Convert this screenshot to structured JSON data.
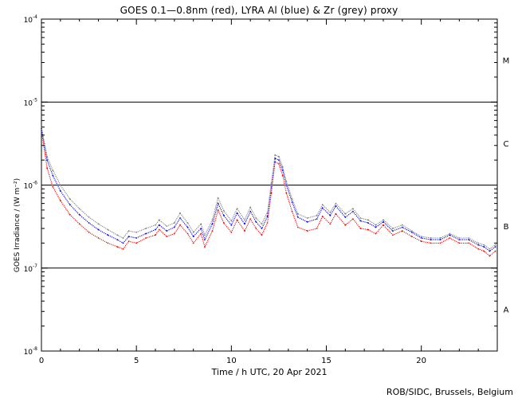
{
  "chart_data": {
    "type": "line",
    "title": "GOES 0.1—0.8nm (red), LYRA Al (blue) & Zr (grey) proxy",
    "xlabel": "Time / h UTC, 20 Apr 2021",
    "ylabel": "GOES Irradiance / (W m⁻²)",
    "credit": "ROB/SIDC, Brussels, Belgium",
    "scale": "log",
    "xlim": [
      0,
      24
    ],
    "ylim": [
      1e-08,
      0.0001
    ],
    "x_ticks": [
      0,
      5,
      10,
      15,
      20
    ],
    "x_tick_labels": [
      "0",
      "5",
      "10",
      "15",
      "20"
    ],
    "y_ticks": [
      {
        "base": "10",
        "exp": "-8",
        "value": 1e-08
      },
      {
        "base": "10",
        "exp": "-7",
        "value": 1e-07
      },
      {
        "base": "10",
        "exp": "-6",
        "value": 1e-06
      },
      {
        "base": "10",
        "exp": "-5",
        "value": 1e-05
      },
      {
        "base": "10",
        "exp": "-4",
        "value": 0.0001
      }
    ],
    "flare_class_lines": [
      1e-07,
      1e-06,
      1e-05
    ],
    "flare_classes": [
      {
        "label": "A",
        "value": 3.2e-08
      },
      {
        "label": "B",
        "value": 3.2e-07
      },
      {
        "label": "C",
        "value": 3.2e-06
      },
      {
        "label": "M",
        "value": 3.2e-05
      }
    ],
    "series": [
      {
        "name": "GOES 0.1—0.8nm",
        "color": "#ff0000",
        "x": [
          0.0,
          0.3,
          0.6,
          1.0,
          1.5,
          2.0,
          2.5,
          3.0,
          3.5,
          4.0,
          4.3,
          4.6,
          5.0,
          5.5,
          6.0,
          6.2,
          6.6,
          7.0,
          7.3,
          7.7,
          8.0,
          8.4,
          8.6,
          9.0,
          9.3,
          9.6,
          10.0,
          10.3,
          10.7,
          11.0,
          11.3,
          11.6,
          11.9,
          12.1,
          12.3,
          12.5,
          12.7,
          12.9,
          13.2,
          13.5,
          14.0,
          14.5,
          14.8,
          15.2,
          15.5,
          16.0,
          16.4,
          16.8,
          17.2,
          17.6,
          18.0,
          18.5,
          19.0,
          19.5,
          20.0,
          20.5,
          21.0,
          21.5,
          22.0,
          22.5,
          23.0,
          23.3,
          23.6,
          23.9
        ],
        "values": [
          4.5e-06,
          1.6e-06,
          9.5e-07,
          6.5e-07,
          4.4e-07,
          3.4e-07,
          2.7e-07,
          2.3e-07,
          2e-07,
          1.8e-07,
          1.7e-07,
          2.1e-07,
          2e-07,
          2.3e-07,
          2.5e-07,
          2.9e-07,
          2.4e-07,
          2.6e-07,
          3.3e-07,
          2.6e-07,
          2e-07,
          2.6e-07,
          1.8e-07,
          2.8e-07,
          5e-07,
          3.5e-07,
          2.7e-07,
          3.8e-07,
          2.8e-07,
          3.9e-07,
          3e-07,
          2.5e-07,
          3.5e-07,
          8e-07,
          1.9e-06,
          1.8e-06,
          1.3e-06,
          8e-07,
          4.8e-07,
          3.1e-07,
          2.8e-07,
          3e-07,
          4.2e-07,
          3.4e-07,
          4.5e-07,
          3.3e-07,
          3.9e-07,
          3e-07,
          2.9e-07,
          2.6e-07,
          3.3e-07,
          2.5e-07,
          2.8e-07,
          2.4e-07,
          2.1e-07,
          2e-07,
          2e-07,
          2.3e-07,
          2e-07,
          2e-07,
          1.7e-07,
          1.6e-07,
          1.4e-07,
          1.6e-07
        ]
      },
      {
        "name": "LYRA Al",
        "color": "#0000ff",
        "x": [
          0.0,
          0.3,
          0.6,
          1.0,
          1.5,
          2.0,
          2.5,
          3.0,
          3.5,
          4.0,
          4.3,
          4.6,
          5.0,
          5.5,
          6.0,
          6.2,
          6.6,
          7.0,
          7.3,
          7.7,
          8.0,
          8.4,
          8.6,
          9.0,
          9.3,
          9.6,
          10.0,
          10.3,
          10.7,
          11.0,
          11.3,
          11.6,
          11.9,
          12.1,
          12.3,
          12.5,
          12.7,
          12.9,
          13.2,
          13.5,
          14.0,
          14.5,
          14.8,
          15.2,
          15.5,
          16.0,
          16.4,
          16.8,
          17.2,
          17.6,
          18.0,
          18.5,
          19.0,
          19.5,
          20.0,
          20.5,
          21.0,
          21.5,
          22.0,
          22.5,
          23.0,
          23.3,
          23.6,
          23.9
        ],
        "values": [
          4.8e-06,
          2e-06,
          1.3e-06,
          8.5e-07,
          5.8e-07,
          4.4e-07,
          3.5e-07,
          2.9e-07,
          2.5e-07,
          2.2e-07,
          2e-07,
          2.4e-07,
          2.3e-07,
          2.6e-07,
          2.9e-07,
          3.3e-07,
          2.8e-07,
          3.1e-07,
          4e-07,
          3.1e-07,
          2.4e-07,
          3e-07,
          2.2e-07,
          3.4e-07,
          6e-07,
          4.3e-07,
          3.3e-07,
          4.6e-07,
          3.4e-07,
          4.8e-07,
          3.6e-07,
          3e-07,
          4.2e-07,
          9.5e-07,
          2.1e-06,
          2e-06,
          1.5e-06,
          1e-06,
          6.2e-07,
          4.1e-07,
          3.6e-07,
          3.9e-07,
          5.3e-07,
          4.3e-07,
          5.6e-07,
          4.1e-07,
          4.8e-07,
          3.7e-07,
          3.5e-07,
          3.1e-07,
          3.6e-07,
          2.8e-07,
          3.1e-07,
          2.7e-07,
          2.3e-07,
          2.2e-07,
          2.2e-07,
          2.5e-07,
          2.2e-07,
          2.2e-07,
          1.9e-07,
          1.8e-07,
          1.6e-07,
          1.8e-07
        ]
      },
      {
        "name": "LYRA Zr",
        "color": "#808080",
        "x": [
          0.0,
          0.3,
          0.6,
          1.0,
          1.5,
          2.0,
          2.5,
          3.0,
          3.5,
          4.0,
          4.3,
          4.6,
          5.0,
          5.5,
          6.0,
          6.2,
          6.6,
          7.0,
          7.3,
          7.7,
          8.0,
          8.4,
          8.6,
          9.0,
          9.3,
          9.6,
          10.0,
          10.3,
          10.7,
          11.0,
          11.3,
          11.6,
          11.9,
          12.1,
          12.3,
          12.5,
          12.7,
          12.9,
          13.2,
          13.5,
          14.0,
          14.5,
          14.8,
          15.2,
          15.5,
          16.0,
          16.4,
          16.8,
          17.2,
          17.6,
          18.0,
          18.5,
          19.0,
          19.5,
          20.0,
          20.5,
          21.0,
          21.5,
          22.0,
          22.5,
          23.0,
          23.3,
          23.6,
          23.9
        ],
        "values": [
          5e-06,
          2.2e-06,
          1.5e-06,
          1e-06,
          6.8e-07,
          5.2e-07,
          4.1e-07,
          3.4e-07,
          2.9e-07,
          2.5e-07,
          2.3e-07,
          2.8e-07,
          2.7e-07,
          3e-07,
          3.3e-07,
          3.8e-07,
          3.2e-07,
          3.5e-07,
          4.6e-07,
          3.5e-07,
          2.7e-07,
          3.4e-07,
          2.5e-07,
          3.8e-07,
          7e-07,
          4.9e-07,
          3.7e-07,
          5.2e-07,
          3.8e-07,
          5.4e-07,
          4e-07,
          3.4e-07,
          4.7e-07,
          1.05e-06,
          2.3e-06,
          2.2e-06,
          1.65e-06,
          1.1e-06,
          6.8e-07,
          4.5e-07,
          4e-07,
          4.3e-07,
          5.8e-07,
          4.7e-07,
          6e-07,
          4.5e-07,
          5.2e-07,
          4e-07,
          3.8e-07,
          3.3e-07,
          3.8e-07,
          3e-07,
          3.3e-07,
          2.8e-07,
          2.4e-07,
          2.3e-07,
          2.3e-07,
          2.6e-07,
          2.3e-07,
          2.3e-07,
          2e-07,
          1.9e-07,
          1.7e-07,
          1.9e-07
        ]
      }
    ]
  }
}
